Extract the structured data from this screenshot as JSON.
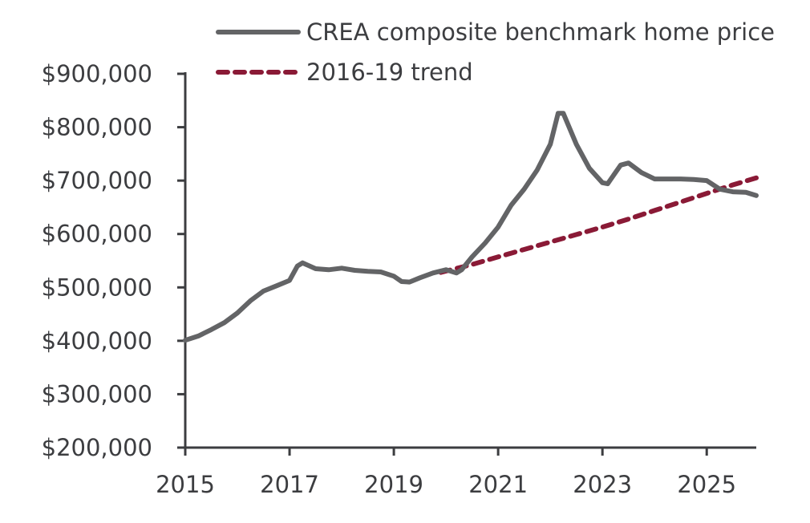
{
  "chart_data": {
    "type": "line",
    "title": "",
    "xlabel": "",
    "ylabel": "",
    "xlim": [
      2015,
      2025.95
    ],
    "ylim": [
      200000,
      900000
    ],
    "x_ticks": [
      2015,
      2017,
      2019,
      2021,
      2023,
      2025
    ],
    "x_tick_labels": [
      "2015",
      "2017",
      "2019",
      "2021",
      "2023",
      "2025"
    ],
    "y_ticks": [
      200000,
      300000,
      400000,
      500000,
      600000,
      700000,
      800000,
      900000
    ],
    "y_tick_labels": [
      "$200,000",
      "$300,000",
      "$400,000",
      "$500,000",
      "$600,000",
      "$700,000",
      "$800,000",
      "$900,000"
    ],
    "grid": false,
    "legend_position": "top-right",
    "series": [
      {
        "name": "CREA composite benchmark home price",
        "color": "#636466",
        "style": "solid",
        "x": [
          2015.0,
          2015.25,
          2015.5,
          2015.75,
          2016.0,
          2016.25,
          2016.5,
          2016.75,
          2017.0,
          2017.15,
          2017.25,
          2017.5,
          2017.75,
          2018.0,
          2018.25,
          2018.5,
          2018.75,
          2019.0,
          2019.15,
          2019.3,
          2019.5,
          2019.75,
          2020.0,
          2020.2,
          2020.3,
          2020.5,
          2020.75,
          2021.0,
          2021.25,
          2021.5,
          2021.75,
          2022.0,
          2022.15,
          2022.25,
          2022.5,
          2022.75,
          2023.0,
          2023.1,
          2023.35,
          2023.5,
          2023.75,
          2024.0,
          2024.25,
          2024.5,
          2024.75,
          2025.0,
          2025.25,
          2025.5,
          2025.75,
          2025.95
        ],
        "values": [
          401000,
          409000,
          421000,
          434000,
          452000,
          475000,
          493000,
          503000,
          513000,
          540000,
          546000,
          535000,
          533000,
          536000,
          532000,
          530000,
          529000,
          521000,
          511000,
          510000,
          518000,
          527000,
          533000,
          527000,
          533000,
          557000,
          583000,
          613000,
          654000,
          684000,
          720000,
          768000,
          826000,
          826000,
          768000,
          723000,
          696000,
          694000,
          729000,
          733000,
          715000,
          703000,
          703000,
          703000,
          702000,
          700000,
          684000,
          679000,
          678000,
          672000
        ]
      },
      {
        "name": "2016-19 trend",
        "color": "#8a1a36",
        "style": "dashed",
        "x": [
          2019.9,
          2020.5,
          2021.0,
          2021.5,
          2022.0,
          2022.5,
          2023.0,
          2023.5,
          2024.0,
          2024.5,
          2025.0,
          2025.5,
          2025.95
        ],
        "values": [
          528000,
          543000,
          557000,
          571000,
          585000,
          599000,
          613000,
          628000,
          644000,
          660000,
          676000,
          692000,
          705000
        ]
      }
    ]
  }
}
